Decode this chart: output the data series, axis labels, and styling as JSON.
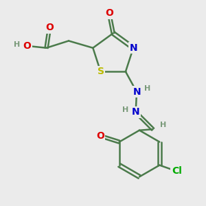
{
  "bg_color": "#ebebeb",
  "bond_color": "#4a7a4a",
  "bond_width": 1.8,
  "atom_colors": {
    "O": "#dd0000",
    "N": "#0000cc",
    "S": "#bbbb00",
    "Cl": "#00aa00",
    "C": "#4a7a4a",
    "H": "#7a9a7a"
  },
  "font_size": 9,
  "fig_size": [
    3.0,
    3.0
  ],
  "dpi": 100
}
